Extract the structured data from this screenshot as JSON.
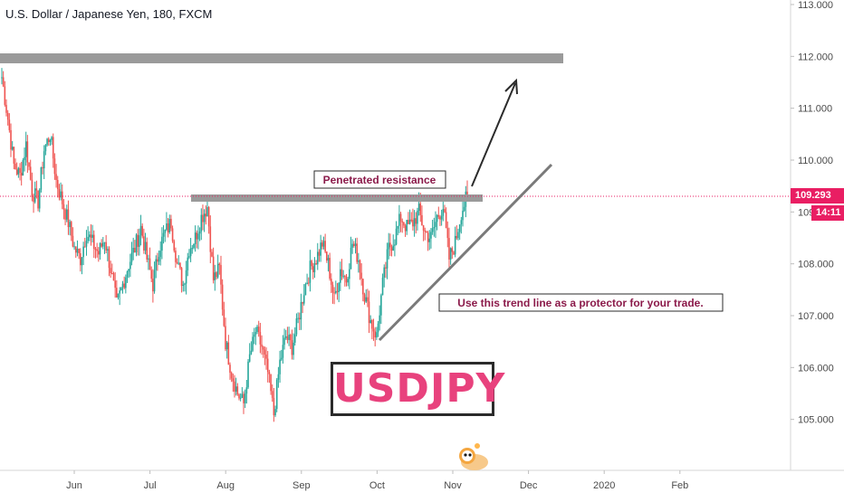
{
  "header": {
    "title": "U.S. Dollar / Japanese Yen, 180, FXCM"
  },
  "price_tag": {
    "price": "109.293",
    "countdown": "14:11",
    "color": "#e91e63"
  },
  "big_label": {
    "text": "USDJPY",
    "color": "#e8427d"
  },
  "annotations": {
    "resistance": "Penetrated resistance",
    "trend": "Use this trend line as a protector for your trade."
  },
  "colors": {
    "up": "#26a69a",
    "down": "#ef5350",
    "zone": "#9a9a9a",
    "line": "#2b2b2b"
  },
  "chart_data": {
    "type": "candlestick",
    "x_tick_labels": [
      "Jun",
      "Jul",
      "Aug",
      "Sep",
      "Oct",
      "Nov",
      "Dec",
      "2020",
      "Feb"
    ],
    "y_tick_labels": [
      "105.000",
      "106.000",
      "107.000",
      "108.000",
      "109.000",
      "110.000",
      "111.000",
      "112.000",
      "113.000"
    ],
    "ylim": [
      104.0,
      113.0
    ],
    "current_price": 109.293,
    "series": [
      {
        "name": "",
        "values": [
          111.6,
          110.8,
          109.9,
          109.7,
          110.3,
          109.4,
          109.2,
          110.2,
          110.5,
          109.6,
          109.2,
          108.8,
          108.3,
          108.1,
          108.6,
          108.4,
          108.2,
          108.5,
          107.9,
          107.2,
          107.6,
          108.0,
          108.3,
          108.7,
          108.1,
          107.6,
          108.3,
          108.6,
          108.8,
          108.0,
          107.6,
          108.3,
          108.5,
          108.9,
          109.1,
          107.7,
          107.9,
          106.5,
          105.9,
          105.5,
          105.3,
          106.2,
          106.7,
          106.4,
          105.9,
          105.1,
          106.1,
          106.6,
          106.4,
          106.9,
          107.5,
          107.9,
          108.1,
          108.4,
          108.0,
          107.3,
          107.9,
          107.7,
          108.4,
          108.1,
          107.4,
          106.9,
          106.6,
          107.6,
          108.3,
          108.5,
          108.9,
          108.7,
          108.8,
          109.0,
          108.6,
          108.5,
          108.9,
          109.1,
          108.1,
          108.4,
          109.0,
          109.3
        ]
      }
    ],
    "support_trend_line": {
      "from": [
        "Oct",
        106.5
      ],
      "to": [
        "Dec",
        109.9
      ]
    },
    "resistance_zone": 109.3,
    "upper_zone": 112.0,
    "grid": false
  }
}
